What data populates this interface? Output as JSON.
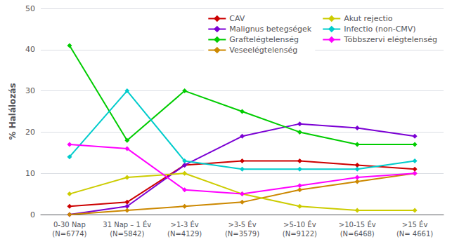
{
  "chart_data": {
    "type": "line",
    "categories": [
      "0-30 Nap\n(N=6774)",
      "31 Nap – 1 Év\n(N=5842)",
      ">1-3 Év\n(N=4129)",
      ">3-5 Év\n(N=3579)",
      ">5-10 Év\n(N=9122)",
      ">10-15 Év\n(N=6468)",
      ">15 Év\n(N= 4661)"
    ],
    "series": [
      {
        "name": "CAV",
        "color": "#cc0000",
        "values": [
          2,
          3,
          12,
          13,
          13,
          12,
          11
        ]
      },
      {
        "name": "Malignus betegségek",
        "color": "#7b00d4",
        "values": [
          0,
          2,
          12,
          19,
          22,
          21,
          19
        ]
      },
      {
        "name": "Graftelégtelenség",
        "color": "#00cc00",
        "values": [
          41,
          18,
          30,
          25,
          20,
          17,
          17
        ]
      },
      {
        "name": "Veseelégtelenség",
        "color": "#cc8800",
        "values": [
          0,
          1,
          2,
          3,
          6,
          8,
          10
        ]
      },
      {
        "name": "Akut rejectio",
        "color": "#cccc00",
        "values": [
          5,
          9,
          10,
          5,
          2,
          1,
          1
        ]
      },
      {
        "name": "Infectio (non-CMV)",
        "color": "#00cccc",
        "values": [
          14,
          30,
          13,
          11,
          11,
          11,
          13
        ]
      },
      {
        "name": "Többszervi elégtelenség",
        "color": "#ff00ff",
        "values": [
          17,
          16,
          6,
          5,
          7,
          9,
          10
        ]
      }
    ],
    "ylabel": "% Halálozás",
    "ylim": [
      0,
      50
    ],
    "yticks": [
      0,
      10,
      20,
      30,
      40,
      50
    ],
    "grid": true,
    "legend": "upper right",
    "marker": "diamond"
  }
}
